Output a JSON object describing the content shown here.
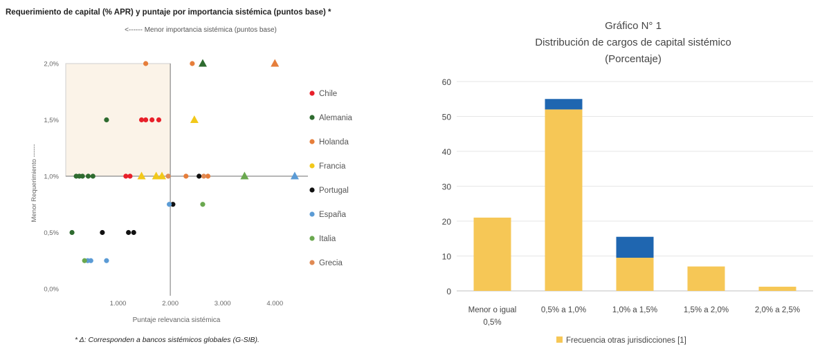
{
  "chart_data": [
    {
      "type": "scatter",
      "title": "Requerimiento de capital (% APR) y puntaje por importancia sistémica (puntos base) *",
      "subtitle": "<------ Menor importancia sistémica (puntos base)",
      "xlabel": "Puntaje relevancia sistémica",
      "ylabel": "Menor Requerimiento ------",
      "xlim": [
        0,
        4500
      ],
      "ylim": [
        0,
        2.0
      ],
      "x_ticks": [
        "",
        "1.000",
        "2.000",
        "3.000",
        "4.000"
      ],
      "x_tick_values": [
        0,
        1000,
        2000,
        3000,
        4000
      ],
      "y_ticks": [
        "0,0%",
        "0,5%",
        "1,0%",
        "1,5%",
        "2,0%"
      ],
      "y_tick_values": [
        0,
        0.5,
        1.0,
        1.5,
        2.0
      ],
      "reference_lines": {
        "x": 2000,
        "y": 1.0
      },
      "highlight_region": {
        "x": [
          0,
          2000
        ],
        "y": [
          1.0,
          2.0
        ]
      },
      "legend_position": "right",
      "footnote": "* Δ: Corresponden a bancos sistémicos globales (G-SIB).",
      "series": [
        {
          "name": "Chile",
          "color": "#e8202a",
          "points": [
            {
              "x": 1150,
              "y": 1.0,
              "m": "o"
            },
            {
              "x": 1230,
              "y": 1.0,
              "m": "o"
            },
            {
              "x": 1450,
              "y": 1.5,
              "m": "o"
            },
            {
              "x": 1530,
              "y": 1.5,
              "m": "o"
            },
            {
              "x": 1650,
              "y": 1.5,
              "m": "o"
            },
            {
              "x": 1780,
              "y": 1.5,
              "m": "o"
            }
          ]
        },
        {
          "name": "Alemania",
          "color": "#2e6b2f",
          "points": [
            {
              "x": 200,
              "y": 1.0,
              "m": "o"
            },
            {
              "x": 260,
              "y": 1.0,
              "m": "o"
            },
            {
              "x": 320,
              "y": 1.0,
              "m": "o"
            },
            {
              "x": 430,
              "y": 1.0,
              "m": "o"
            },
            {
              "x": 520,
              "y": 1.0,
              "m": "o"
            },
            {
              "x": 120,
              "y": 0.5,
              "m": "o"
            },
            {
              "x": 780,
              "y": 1.5,
              "m": "o"
            },
            {
              "x": 2620,
              "y": 2.0,
              "m": "^"
            }
          ]
        },
        {
          "name": "Holanda",
          "color": "#e67e3b",
          "points": [
            {
              "x": 1530,
              "y": 2.0,
              "m": "o"
            },
            {
              "x": 2420,
              "y": 2.0,
              "m": "o"
            },
            {
              "x": 2300,
              "y": 1.0,
              "m": "o"
            },
            {
              "x": 2720,
              "y": 1.0,
              "m": "o"
            },
            {
              "x": 4000,
              "y": 2.0,
              "m": "^"
            }
          ]
        },
        {
          "name": "Francia",
          "color": "#f2c81a",
          "points": [
            {
              "x": 1450,
              "y": 1.0,
              "m": "^"
            },
            {
              "x": 1730,
              "y": 1.0,
              "m": "^"
            },
            {
              "x": 1840,
              "y": 1.0,
              "m": "^"
            },
            {
              "x": 2460,
              "y": 1.5,
              "m": "^"
            }
          ]
        },
        {
          "name": "Portugal",
          "color": "#111111",
          "points": [
            {
              "x": 700,
              "y": 0.5,
              "m": "o"
            },
            {
              "x": 1200,
              "y": 0.5,
              "m": "o"
            },
            {
              "x": 1300,
              "y": 0.5,
              "m": "o"
            },
            {
              "x": 2050,
              "y": 0.75,
              "m": "o"
            },
            {
              "x": 2550,
              "y": 1.0,
              "m": "o"
            }
          ]
        },
        {
          "name": "España",
          "color": "#5b9bd5",
          "points": [
            {
              "x": 420,
              "y": 0.25,
              "m": "o"
            },
            {
              "x": 480,
              "y": 0.25,
              "m": "o"
            },
            {
              "x": 780,
              "y": 0.25,
              "m": "o"
            },
            {
              "x": 1980,
              "y": 0.75,
              "m": "o"
            },
            {
              "x": 4380,
              "y": 1.0,
              "m": "^"
            }
          ]
        },
        {
          "name": "Italia",
          "color": "#6aa84f",
          "points": [
            {
              "x": 360,
              "y": 0.25,
              "m": "o"
            },
            {
              "x": 2620,
              "y": 0.75,
              "m": "o"
            },
            {
              "x": 3420,
              "y": 1.0,
              "m": "^"
            }
          ]
        },
        {
          "name": "Grecia",
          "color": "#e08a54",
          "points": [
            {
              "x": 1960,
              "y": 1.0,
              "m": "o"
            },
            {
              "x": 2640,
              "y": 1.0,
              "m": "o"
            }
          ]
        }
      ]
    },
    {
      "type": "bar",
      "stacked": true,
      "title": "Gráfico N° 1",
      "subtitle": "Distribución de cargos de capital sistémico",
      "subtitle2": "(Porcentaje)",
      "categories": [
        "Menor o igual\n0,5%",
        "0,5% a 1,0%",
        "1,0% a 1,5%",
        "1,5% a 2,0%",
        "2,0% a 2,5%"
      ],
      "ylim": [
        0,
        60
      ],
      "y_ticks": [
        "0",
        "10",
        "20",
        "30",
        "40",
        "50",
        "60"
      ],
      "y_tick_values": [
        0,
        10,
        20,
        30,
        40,
        50,
        60
      ],
      "legend_position": "bottom",
      "series": [
        {
          "name": "Frecuencia otras jurisdicciones [1]",
          "color": "#f6c756",
          "values": [
            21,
            52,
            9.5,
            7,
            1.2
          ]
        },
        {
          "name": "",
          "color": "#1f66b0",
          "values": [
            0,
            3,
            6,
            0,
            0
          ]
        }
      ]
    }
  ]
}
